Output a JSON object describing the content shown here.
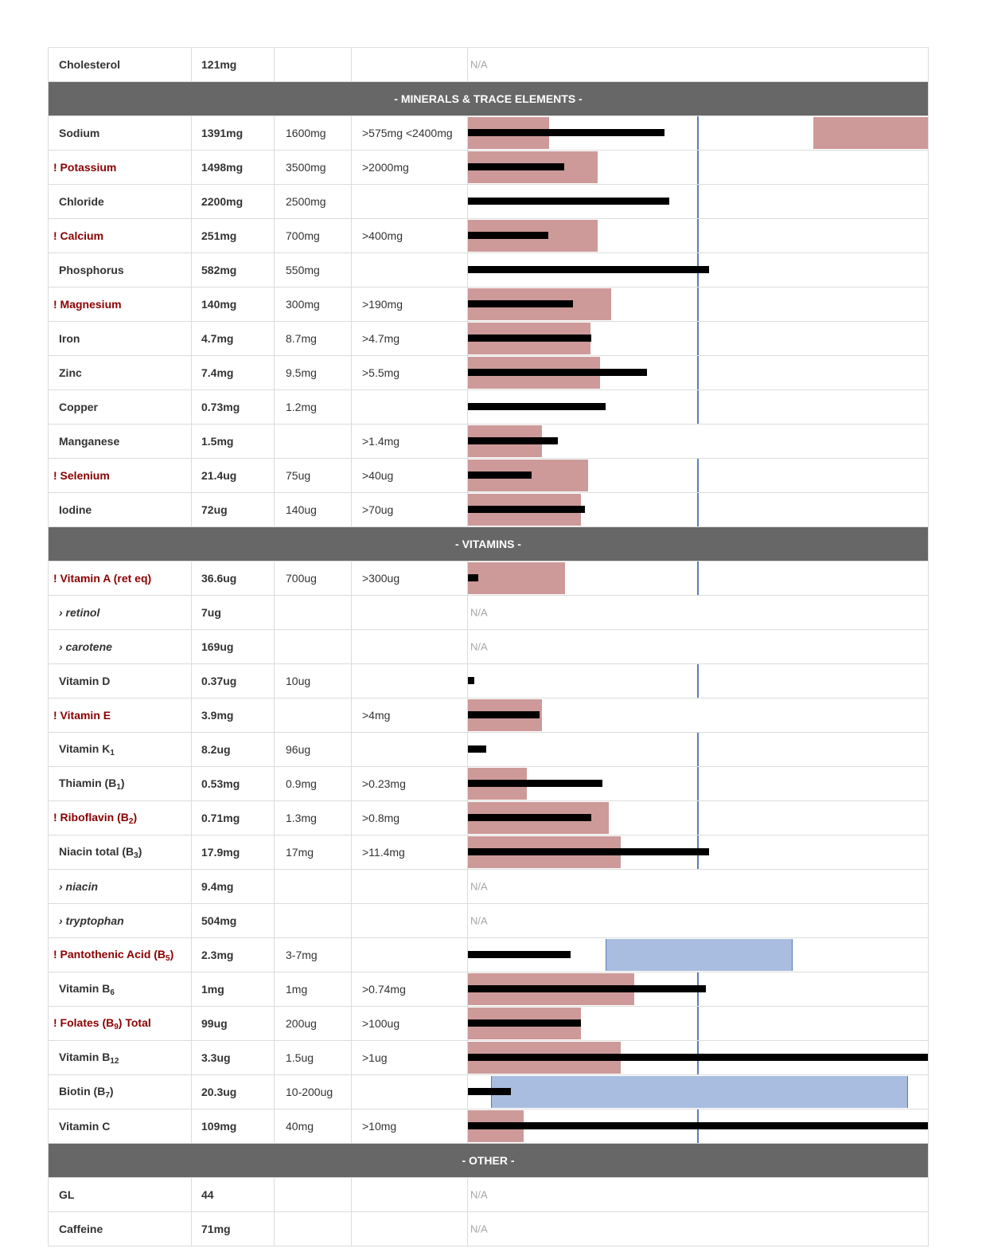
{
  "colors": {
    "section_bg": "#676767",
    "warning_text": "#8b0000",
    "limit_fill": "#cd9a99",
    "range_fill": "#a8bddf",
    "recommended_line": "#5b7cb8",
    "amount_bar": "#000000",
    "na_text": "#a6a6a6"
  },
  "scale_note": "bar values are fractions of the bar-column width",
  "na_label": "N/A",
  "rows": [
    {
      "type": "item",
      "name": "Cholesterol",
      "amount": "121mg",
      "rec": "",
      "limit": "",
      "na": true
    },
    {
      "type": "section",
      "label": "- MINERALS & TRACE ELEMENTS -"
    },
    {
      "type": "item",
      "name": "Sodium",
      "amount": "1391mg",
      "rec": "1600mg",
      "limit": ">575mg <2400mg",
      "amt_frac": 0.428,
      "rec_frac": 0.5,
      "limit_boxes": [
        [
          0,
          0.176
        ],
        [
          0.75,
          1.0
        ]
      ]
    },
    {
      "type": "item",
      "name": "! Potassium",
      "warn": true,
      "amount": "1498mg",
      "rec": "3500mg",
      "limit": ">2000mg",
      "amt_frac": 0.21,
      "rec_frac": 0.5,
      "limit_boxes": [
        [
          0,
          0.282
        ]
      ]
    },
    {
      "type": "item",
      "name": "Chloride",
      "amount": "2200mg",
      "rec": "2500mg",
      "limit": "",
      "amt_frac": 0.438,
      "rec_frac": 0.5
    },
    {
      "type": "item",
      "name": "! Calcium",
      "warn": true,
      "amount": "251mg",
      "rec": "700mg",
      "limit": ">400mg",
      "amt_frac": 0.175,
      "rec_frac": 0.5,
      "limit_boxes": [
        [
          0,
          0.282
        ]
      ]
    },
    {
      "type": "item",
      "name": "Phosphorus",
      "amount": "582mg",
      "rec": "550mg",
      "limit": "",
      "amt_frac": 0.524,
      "rec_frac": 0.5
    },
    {
      "type": "item",
      "name": "! Magnesium",
      "warn": true,
      "amount": "140mg",
      "rec": "300mg",
      "limit": ">190mg",
      "amt_frac": 0.229,
      "rec_frac": 0.5,
      "limit_boxes": [
        [
          0,
          0.311
        ]
      ]
    },
    {
      "type": "item",
      "name": "Iron",
      "amount": "4.7mg",
      "rec": "8.7mg",
      "limit": ">4.7mg",
      "amt_frac": 0.269,
      "rec_frac": 0.5,
      "limit_boxes": [
        [
          0,
          0.266
        ]
      ]
    },
    {
      "type": "item",
      "name": "Zinc",
      "amount": "7.4mg",
      "rec": "9.5mg",
      "limit": ">5.5mg",
      "amt_frac": 0.389,
      "rec_frac": 0.5,
      "limit_boxes": [
        [
          0,
          0.288
        ]
      ]
    },
    {
      "type": "item",
      "name": "Copper",
      "amount": "0.73mg",
      "rec": "1.2mg",
      "limit": "",
      "amt_frac": 0.3,
      "rec_frac": 0.5
    },
    {
      "type": "item",
      "name": "Manganese",
      "amount": "1.5mg",
      "rec": "",
      "limit": ">1.4mg",
      "amt_frac": 0.196,
      "limit_boxes": [
        [
          0,
          0.161
        ]
      ]
    },
    {
      "type": "item",
      "name": "! Selenium",
      "warn": true,
      "amount": "21.4ug",
      "rec": "75ug",
      "limit": ">40ug",
      "amt_frac": 0.139,
      "rec_frac": 0.5,
      "limit_boxes": [
        [
          0,
          0.262
        ]
      ]
    },
    {
      "type": "item",
      "name": "Iodine",
      "amount": "72ug",
      "rec": "140ug",
      "limit": ">70ug",
      "amt_frac": 0.255,
      "rec_frac": 0.5,
      "limit_boxes": [
        [
          0,
          0.246
        ]
      ]
    },
    {
      "type": "section",
      "label": "- VITAMINS -"
    },
    {
      "type": "item",
      "name": "! Vitamin A (ret eq)",
      "warn": true,
      "amount": "36.6ug",
      "rec": "700ug",
      "limit": ">300ug",
      "amt_frac": 0.023,
      "rec_frac": 0.5,
      "limit_boxes": [
        [
          0,
          0.211
        ]
      ]
    },
    {
      "type": "item",
      "name": "› retinol",
      "sub": true,
      "amount": "7ug",
      "rec": "",
      "limit": "",
      "na": true
    },
    {
      "type": "item",
      "name": "› carotene",
      "sub": true,
      "amount": "169ug",
      "rec": "",
      "limit": "",
      "na": true
    },
    {
      "type": "item",
      "name": "Vitamin D",
      "amount": "0.37ug",
      "rec": "10ug",
      "limit": "",
      "amt_frac": 0.014,
      "rec_frac": 0.5
    },
    {
      "type": "item",
      "name": "! Vitamin E",
      "warn": true,
      "amount": "3.9mg",
      "rec": "",
      "limit": ">4mg",
      "amt_frac": 0.155,
      "limit_boxes": [
        [
          0,
          0.161
        ]
      ]
    },
    {
      "type": "item",
      "name": "Vitamin K",
      "name_sub": "1",
      "amount": "8.2ug",
      "rec": "96ug",
      "limit": "",
      "amt_frac": 0.04,
      "rec_frac": 0.5
    },
    {
      "type": "item",
      "name": "Thiamin (B",
      "name_sub": "1",
      "name_tail": ")",
      "amount": "0.53mg",
      "rec": "0.9mg",
      "limit": ">0.23mg",
      "amt_frac": 0.293,
      "rec_frac": 0.5,
      "limit_boxes": [
        [
          0,
          0.128
        ]
      ]
    },
    {
      "type": "item",
      "name": "! Riboflavin (B",
      "name_sub": "2",
      "name_tail": ")",
      "warn": true,
      "amount": "0.71mg",
      "rec": "1.3mg",
      "limit": ">0.8mg",
      "amt_frac": 0.269,
      "rec_frac": 0.5,
      "limit_boxes": [
        [
          0,
          0.307
        ]
      ]
    },
    {
      "type": "item",
      "name": "Niacin total (B",
      "name_sub": "3",
      "name_tail": ")",
      "amount": "17.9mg",
      "rec": "17mg",
      "limit": ">11.4mg",
      "amt_frac": 0.524,
      "rec_frac": 0.5,
      "limit_boxes": [
        [
          0,
          0.333
        ]
      ]
    },
    {
      "type": "item",
      "name": "› niacin",
      "sub": true,
      "amount": "9.4mg",
      "rec": "",
      "limit": "",
      "na": true
    },
    {
      "type": "item",
      "name": "› tryptophan",
      "sub": true,
      "amount": "504mg",
      "rec": "",
      "limit": "",
      "na": true
    },
    {
      "type": "item",
      "name": "! Pantothenic Acid (B",
      "name_sub": "5",
      "name_tail": ")",
      "warn": true,
      "amount": "2.3mg",
      "rec": "3-7mg",
      "limit": "",
      "amt_frac": 0.224,
      "range_box": [
        0.3,
        0.703
      ]
    },
    {
      "type": "item",
      "name": "Vitamin B",
      "name_sub": "6",
      "amount": "1mg",
      "rec": "1mg",
      "limit": ">0.74mg",
      "amt_frac": 0.518,
      "rec_frac": 0.5,
      "limit_boxes": [
        [
          0,
          0.362
        ]
      ]
    },
    {
      "type": "item",
      "name": "! Folates (B",
      "name_sub": "9",
      "name_tail": ") Total",
      "warn": true,
      "amount": "99ug",
      "rec": "200ug",
      "limit": ">100ug",
      "amt_frac": 0.246,
      "rec_frac": 0.5,
      "limit_boxes": [
        [
          0,
          0.246
        ]
      ]
    },
    {
      "type": "item",
      "name": "Vitamin B",
      "name_sub": "12",
      "amount": "3.3ug",
      "rec": "1.5ug",
      "limit": ">1ug",
      "amt_frac": 1.0,
      "rec_frac": 0.5,
      "limit_boxes": [
        [
          0,
          0.333
        ]
      ]
    },
    {
      "type": "item",
      "name": "Biotin (B",
      "name_sub": "7",
      "name_tail": ")",
      "amount": "20.3ug",
      "rec": "10-200ug",
      "limit": "",
      "amt_frac": 0.093,
      "range_box": [
        0.05,
        0.953
      ]
    },
    {
      "type": "item",
      "name": "Vitamin C",
      "amount": "109mg",
      "rec": "40mg",
      "limit": ">10mg",
      "amt_frac": 1.0,
      "rec_frac": 0.5,
      "limit_boxes": [
        [
          0,
          0.121
        ]
      ]
    },
    {
      "type": "section",
      "label": "- OTHER -"
    },
    {
      "type": "item",
      "name": "GL",
      "amount": "44",
      "rec": "",
      "limit": "",
      "na": true
    },
    {
      "type": "item",
      "name": "Caffeine",
      "amount": "71mg",
      "rec": "",
      "limit": "",
      "na": true
    }
  ]
}
